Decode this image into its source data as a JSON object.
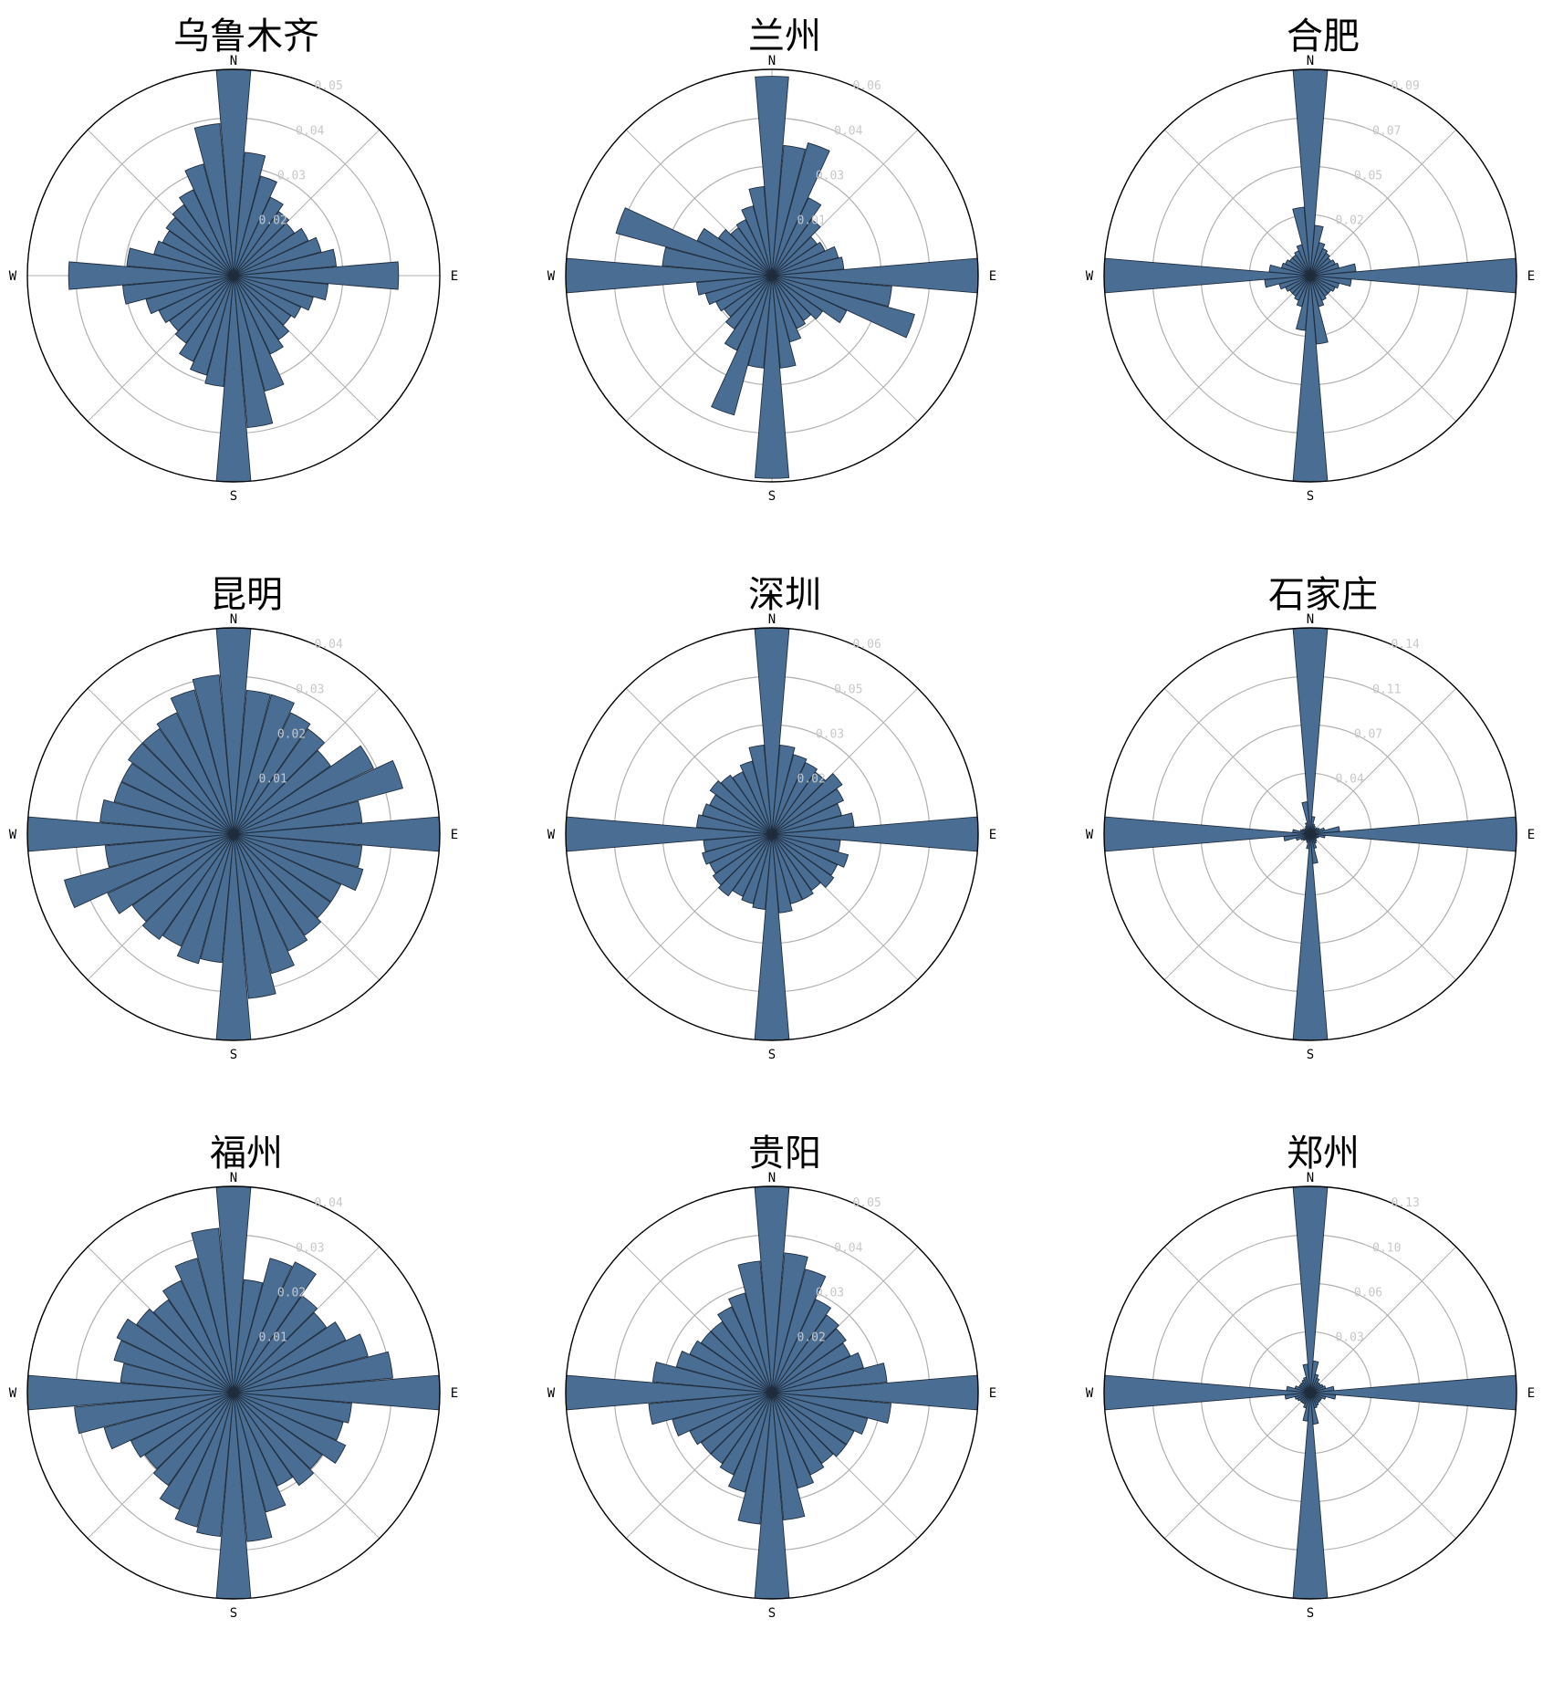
{
  "layout_cols": 3,
  "colors": {
    "bar_fill": "#4a6d94",
    "bar_edge": "#1f2d3d",
    "grid": "#b0b0b0",
    "outline": "#000000",
    "tick_label": "#c8c8c8"
  },
  "directions": [
    "N",
    "E",
    "S",
    "W"
  ],
  "chart_data": [
    {
      "type": "polar-bar",
      "title": "乌鲁木齐",
      "rmax": 0.05,
      "rticks": [
        "0.05",
        "0.04",
        "0.03",
        "0.02"
      ],
      "angles_deg": [
        0,
        10,
        20,
        30,
        40,
        50,
        60,
        70,
        80,
        90,
        100,
        110,
        120,
        130,
        140,
        150,
        160,
        170,
        180,
        190,
        200,
        210,
        220,
        230,
        240,
        250,
        260,
        270,
        280,
        290,
        300,
        310,
        320,
        330,
        340,
        350
      ],
      "values": [
        0.05,
        0.03,
        0.025,
        0.021,
        0.019,
        0.018,
        0.02,
        0.022,
        0.025,
        0.04,
        0.023,
        0.02,
        0.018,
        0.017,
        0.019,
        0.021,
        0.029,
        0.037,
        0.05,
        0.027,
        0.025,
        0.023,
        0.02,
        0.019,
        0.02,
        0.022,
        0.027,
        0.04,
        0.026,
        0.02,
        0.019,
        0.02,
        0.021,
        0.023,
        0.028,
        0.037
      ]
    },
    {
      "type": "polar-bar",
      "title": "兰州",
      "rmax": 0.06,
      "rticks": [
        "0.06",
        "0.04",
        "0.03",
        "0.01"
      ],
      "angles_deg": [
        0,
        10,
        20,
        30,
        40,
        50,
        60,
        70,
        80,
        90,
        100,
        110,
        120,
        130,
        140,
        150,
        160,
        170,
        180,
        190,
        200,
        210,
        220,
        230,
        240,
        250,
        260,
        270,
        280,
        290,
        300,
        310,
        320,
        330,
        340,
        350
      ],
      "values": [
        0.058,
        0.038,
        0.04,
        0.025,
        0.02,
        0.016,
        0.017,
        0.02,
        0.021,
        0.06,
        0.035,
        0.043,
        0.024,
        0.018,
        0.016,
        0.017,
        0.02,
        0.027,
        0.059,
        0.027,
        0.042,
        0.024,
        0.019,
        0.017,
        0.018,
        0.02,
        0.022,
        0.06,
        0.032,
        0.047,
        0.024,
        0.019,
        0.017,
        0.018,
        0.021,
        0.026
      ]
    },
    {
      "type": "polar-bar",
      "title": "合肥",
      "rmax": 0.09,
      "rticks": [
        "0.09",
        "0.07",
        "0.05",
        "0.02"
      ],
      "angles_deg": [
        0,
        10,
        20,
        30,
        40,
        50,
        60,
        70,
        80,
        90,
        100,
        110,
        120,
        130,
        140,
        150,
        160,
        170,
        180,
        190,
        200,
        210,
        220,
        230,
        240,
        250,
        260,
        270,
        280,
        290,
        300,
        310,
        320,
        330,
        340,
        350
      ],
      "values": [
        0.09,
        0.022,
        0.015,
        0.013,
        0.012,
        0.011,
        0.012,
        0.013,
        0.02,
        0.09,
        0.018,
        0.013,
        0.012,
        0.011,
        0.011,
        0.012,
        0.014,
        0.03,
        0.09,
        0.024,
        0.014,
        0.012,
        0.011,
        0.011,
        0.012,
        0.014,
        0.02,
        0.09,
        0.018,
        0.013,
        0.012,
        0.011,
        0.011,
        0.012,
        0.014,
        0.03
      ]
    },
    {
      "type": "polar-bar",
      "title": "昆明",
      "rmax": 0.04,
      "rticks": [
        "0.04",
        "0.03",
        "0.02",
        "0.01"
      ],
      "angles_deg": [
        0,
        10,
        20,
        30,
        40,
        50,
        60,
        70,
        80,
        90,
        100,
        110,
        120,
        130,
        140,
        150,
        160,
        170,
        180,
        190,
        200,
        210,
        220,
        230,
        240,
        250,
        260,
        270,
        280,
        290,
        300,
        310,
        320,
        330,
        340,
        350
      ],
      "values": [
        0.04,
        0.028,
        0.028,
        0.026,
        0.025,
        0.023,
        0.03,
        0.034,
        0.025,
        0.04,
        0.025,
        0.026,
        0.023,
        0.023,
        0.024,
        0.025,
        0.028,
        0.032,
        0.04,
        0.025,
        0.026,
        0.024,
        0.025,
        0.024,
        0.027,
        0.034,
        0.025,
        0.04,
        0.026,
        0.024,
        0.024,
        0.025,
        0.025,
        0.026,
        0.029,
        0.031
      ]
    },
    {
      "type": "polar-bar",
      "title": "深圳",
      "rmax": 0.06,
      "rticks": [
        "0.06",
        "0.05",
        "0.03",
        "0.02"
      ],
      "angles_deg": [
        0,
        10,
        20,
        30,
        40,
        50,
        60,
        70,
        80,
        90,
        100,
        110,
        120,
        130,
        140,
        150,
        160,
        170,
        180,
        190,
        200,
        210,
        220,
        230,
        240,
        250,
        260,
        270,
        280,
        290,
        300,
        310,
        320,
        330,
        340,
        350
      ],
      "values": [
        0.06,
        0.026,
        0.024,
        0.023,
        0.022,
        0.025,
        0.023,
        0.021,
        0.024,
        0.06,
        0.02,
        0.023,
        0.021,
        0.022,
        0.02,
        0.021,
        0.021,
        0.023,
        0.06,
        0.022,
        0.021,
        0.02,
        0.022,
        0.021,
        0.02,
        0.021,
        0.02,
        0.06,
        0.022,
        0.021,
        0.02,
        0.022,
        0.021,
        0.02,
        0.022,
        0.026
      ]
    },
    {
      "type": "polar-bar",
      "title": "石家庄",
      "rmax": 0.14,
      "rticks": [
        "0.14",
        "0.11",
        "0.07",
        "0.04"
      ],
      "angles_deg": [
        0,
        10,
        20,
        30,
        40,
        50,
        60,
        70,
        80,
        90,
        100,
        110,
        120,
        130,
        140,
        150,
        160,
        170,
        180,
        190,
        200,
        210,
        220,
        230,
        240,
        250,
        260,
        270,
        280,
        290,
        300,
        310,
        320,
        330,
        340,
        350
      ],
      "values": [
        0.14,
        0.012,
        0.007,
        0.006,
        0.005,
        0.006,
        0.007,
        0.01,
        0.02,
        0.14,
        0.01,
        0.006,
        0.005,
        0.005,
        0.006,
        0.007,
        0.01,
        0.02,
        0.14,
        0.01,
        0.006,
        0.005,
        0.005,
        0.006,
        0.007,
        0.01,
        0.018,
        0.14,
        0.012,
        0.007,
        0.006,
        0.005,
        0.005,
        0.006,
        0.008,
        0.022
      ]
    },
    {
      "type": "polar-bar",
      "title": "福州",
      "rmax": 0.04,
      "rticks": [
        "0.04",
        "0.03",
        "0.02",
        "0.01"
      ],
      "angles_deg": [
        0,
        10,
        20,
        30,
        40,
        50,
        60,
        70,
        80,
        90,
        100,
        110,
        120,
        130,
        140,
        150,
        160,
        170,
        180,
        190,
        200,
        210,
        220,
        230,
        240,
        250,
        260,
        270,
        280,
        290,
        300,
        310,
        320,
        330,
        340,
        350
      ],
      "values": [
        0.04,
        0.022,
        0.027,
        0.028,
        0.023,
        0.022,
        0.024,
        0.027,
        0.031,
        0.04,
        0.023,
        0.022,
        0.024,
        0.021,
        0.022,
        0.02,
        0.024,
        0.029,
        0.04,
        0.028,
        0.027,
        0.025,
        0.022,
        0.021,
        0.022,
        0.026,
        0.031,
        0.04,
        0.022,
        0.024,
        0.025,
        0.023,
        0.022,
        0.024,
        0.027,
        0.032
      ]
    },
    {
      "type": "polar-bar",
      "title": "贵阳",
      "rmax": 0.05,
      "rticks": [
        "0.05",
        "0.04",
        "0.03",
        "0.02"
      ],
      "angles_deg": [
        0,
        10,
        20,
        30,
        40,
        50,
        60,
        70,
        80,
        90,
        100,
        110,
        120,
        130,
        140,
        150,
        160,
        170,
        180,
        190,
        200,
        210,
        220,
        230,
        240,
        250,
        260,
        270,
        280,
        290,
        300,
        310,
        320,
        330,
        340,
        350
      ],
      "values": [
        0.05,
        0.034,
        0.031,
        0.025,
        0.023,
        0.022,
        0.021,
        0.023,
        0.028,
        0.05,
        0.029,
        0.024,
        0.022,
        0.022,
        0.021,
        0.022,
        0.024,
        0.031,
        0.05,
        0.032,
        0.025,
        0.022,
        0.021,
        0.021,
        0.022,
        0.025,
        0.03,
        0.05,
        0.029,
        0.024,
        0.022,
        0.021,
        0.021,
        0.023,
        0.025,
        0.032
      ]
    },
    {
      "type": "polar-bar",
      "title": "郑州",
      "rmax": 0.13,
      "rticks": [
        "0.13",
        "0.10",
        "0.06",
        "0.03"
      ],
      "angles_deg": [
        0,
        10,
        20,
        30,
        40,
        50,
        60,
        70,
        80,
        90,
        100,
        110,
        120,
        130,
        140,
        150,
        160,
        170,
        180,
        190,
        200,
        210,
        220,
        230,
        240,
        250,
        260,
        270,
        280,
        290,
        300,
        310,
        320,
        330,
        340,
        350
      ],
      "values": [
        0.13,
        0.02,
        0.012,
        0.01,
        0.008,
        0.008,
        0.009,
        0.01,
        0.015,
        0.13,
        0.016,
        0.01,
        0.008,
        0.008,
        0.008,
        0.009,
        0.01,
        0.02,
        0.13,
        0.018,
        0.01,
        0.008,
        0.008,
        0.008,
        0.009,
        0.01,
        0.016,
        0.13,
        0.015,
        0.01,
        0.008,
        0.008,
        0.008,
        0.009,
        0.01,
        0.018
      ]
    }
  ]
}
